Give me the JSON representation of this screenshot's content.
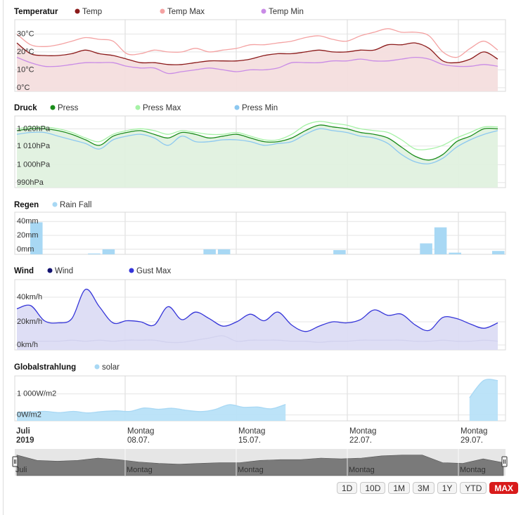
{
  "chart_data": [
    {
      "type": "area",
      "title": "Temperatur",
      "yticks": [
        "0°C",
        "10°C",
        "20°C",
        "30°C"
      ],
      "ylim": [
        0,
        40
      ],
      "series": [
        {
          "name": "Temp",
          "color": "#8b1a1a",
          "values": [
            27,
            21,
            20,
            20,
            21,
            23,
            21,
            20,
            18,
            16,
            16,
            15,
            15,
            16,
            17,
            17,
            17,
            18,
            20,
            21,
            21,
            22,
            23,
            22,
            22,
            23,
            23,
            26,
            26,
            27,
            24,
            17,
            16,
            18,
            22,
            18
          ]
        },
        {
          "name": "Temp Max",
          "color": "#f4a2a2",
          "values": [
            32,
            26,
            25,
            26,
            28,
            30,
            29,
            28,
            21,
            21,
            23,
            22,
            22,
            24,
            22,
            23,
            24,
            26,
            26,
            27,
            28,
            30,
            31,
            29,
            28,
            31,
            33,
            35,
            33,
            33,
            31,
            22,
            19,
            24,
            28,
            23
          ]
        },
        {
          "name": "Temp Min",
          "color": "#c98be6",
          "values": [
            19,
            16,
            14,
            14,
            15,
            16,
            16,
            16,
            14,
            13,
            13,
            10,
            11,
            12,
            13,
            12,
            11,
            12,
            12,
            13,
            16,
            16,
            16,
            17,
            17,
            18,
            17,
            17,
            18,
            19,
            18,
            15,
            14,
            14,
            15,
            14
          ]
        }
      ]
    },
    {
      "type": "area",
      "title": "Druck",
      "yticks": [
        "990hPa",
        "1 000hPa",
        "1 010hPa",
        "1 020hPa"
      ],
      "ylim": [
        987,
        1026
      ],
      "series": [
        {
          "name": "Press",
          "color": "#1a8c1a",
          "values": [
            1018,
            1019,
            1019,
            1018,
            1016,
            1013,
            1010,
            1015,
            1017,
            1018,
            1016,
            1014,
            1017,
            1016,
            1014,
            1015,
            1016,
            1014,
            1012,
            1012,
            1014,
            1018,
            1021,
            1020,
            1019,
            1017,
            1016,
            1014,
            1009,
            1004,
            1002,
            1005,
            1012,
            1015,
            1019,
            1019
          ]
        },
        {
          "name": "Press Max",
          "color": "#a6f2a6",
          "values": [
            1019,
            1020,
            1020,
            1019,
            1017,
            1014,
            1012,
            1016,
            1018,
            1019,
            1018,
            1016,
            1018,
            1017,
            1016,
            1016,
            1017,
            1015,
            1013,
            1013,
            1016,
            1021,
            1023,
            1022,
            1021,
            1019,
            1018,
            1017,
            1013,
            1008,
            1008,
            1010,
            1014,
            1017,
            1020,
            1020
          ]
        },
        {
          "name": "Press Min",
          "color": "#8cc8f0",
          "values": [
            1016,
            1017,
            1017,
            1015,
            1013,
            1011,
            1008,
            1013,
            1015,
            1016,
            1014,
            1010,
            1015,
            1012,
            1012,
            1013,
            1013,
            1012,
            1010,
            1011,
            1012,
            1016,
            1019,
            1018,
            1017,
            1015,
            1014,
            1011,
            1005,
            1001,
            1000,
            1003,
            1009,
            1013,
            1016,
            1018
          ]
        }
      ]
    },
    {
      "type": "bar",
      "title": "Regen",
      "yticks": [
        "0mm",
        "20mm",
        "40mm"
      ],
      "ylim": [
        0,
        50
      ],
      "series": [
        {
          "name": "Rain Fall",
          "color": "#a8d8f4",
          "values": [
            0,
            38,
            0,
            0,
            0,
            1,
            6,
            0,
            0,
            0,
            0,
            0,
            0,
            6,
            6,
            0,
            0,
            0,
            0,
            0,
            0,
            0,
            5,
            0,
            0,
            0,
            0,
            0,
            13,
            32,
            2,
            0,
            0,
            4
          ]
        }
      ]
    },
    {
      "type": "area",
      "title": "Wind",
      "yticks": [
        "0km/h",
        "20km/h",
        "40km/h"
      ],
      "ylim": [
        -5,
        60
      ],
      "series": [
        {
          "name": "Wind",
          "color": "#131370",
          "values": [
            3,
            3,
            3,
            3,
            4,
            3,
            4,
            3,
            4,
            4,
            4,
            2,
            2,
            4,
            6,
            8,
            3,
            4,
            4,
            4,
            3,
            3,
            2,
            3,
            3,
            4,
            4,
            4,
            4,
            3,
            3,
            4,
            3,
            3,
            4,
            3
          ]
        },
        {
          "name": "Gust Max",
          "color": "#3535d9",
          "values": [
            33,
            36,
            22,
            20,
            24,
            51,
            35,
            20,
            22,
            21,
            18,
            35,
            23,
            30,
            24,
            17,
            21,
            28,
            22,
            30,
            18,
            12,
            17,
            21,
            20,
            23,
            32,
            27,
            28,
            18,
            13,
            25,
            24,
            19,
            15,
            20
          ]
        }
      ]
    },
    {
      "type": "area",
      "title": "Globalstrahlung",
      "yticks": [
        "0W/m2",
        "1 000W/m2"
      ],
      "ylim": [
        -200,
        1550
      ],
      "series": [
        {
          "name": "solar",
          "color": "#a8d8f4",
          "values": [
            130,
            150,
            170,
            120,
            170,
            110,
            160,
            190,
            170,
            300,
            250,
            290,
            210,
            160,
            240,
            430,
            330,
            340,
            270,
            440,
            null,
            null,
            null,
            null,
            null,
            null,
            null,
            null,
            null,
            null,
            null,
            null,
            700,
            1370,
            1370
          ]
        }
      ]
    }
  ],
  "x_axis": {
    "labels": [
      {
        "top": "Juli",
        "bottom": "2019"
      },
      {
        "top": "Montag",
        "bottom": "08.07."
      },
      {
        "top": "Montag",
        "bottom": "15.07."
      },
      {
        "top": "Montag",
        "bottom": "22.07."
      },
      {
        "top": "Montag",
        "bottom": "29.07."
      }
    ]
  },
  "navigator": {
    "labels": [
      "Juli",
      "Montag",
      "Montag",
      "Montag",
      "Montag"
    ],
    "values": [
      27,
      20,
      19,
      20,
      23,
      21,
      18,
      16,
      15,
      16,
      17,
      17,
      20,
      21,
      21,
      23,
      22,
      23,
      26,
      27,
      27,
      17,
      16,
      22,
      17
    ]
  },
  "range_selector": {
    "buttons": [
      "1D",
      "10D",
      "1M",
      "3M",
      "1Y",
      "YTD",
      "MAX"
    ],
    "active": "MAX"
  }
}
